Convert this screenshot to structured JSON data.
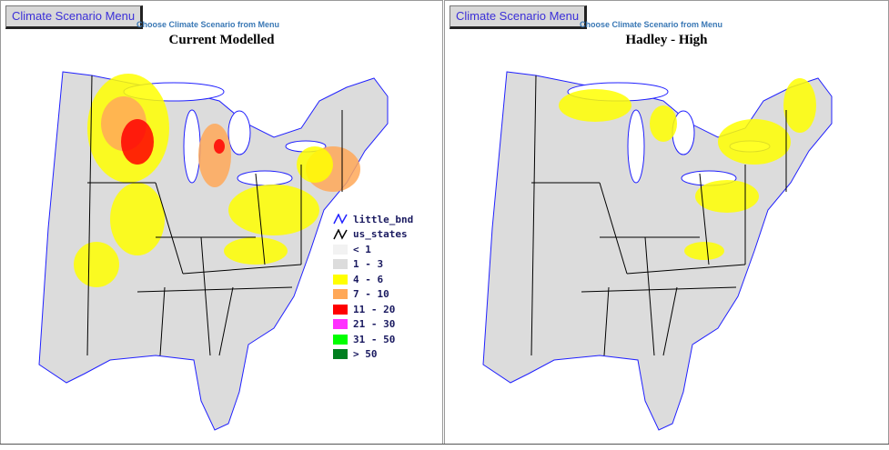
{
  "panels": [
    {
      "menu_label": "Climate Scenario Menu",
      "choose_text": "Choose Climate Scenario from Menu",
      "title": "Current Modelled"
    },
    {
      "menu_label": "Climate Scenario Menu",
      "choose_text": "Choose Climate Scenario from Menu",
      "title": "Hadley - High"
    }
  ],
  "legend": {
    "lines": [
      {
        "label": "little_bnd",
        "color": "#2020ff"
      },
      {
        "label": "us_states",
        "color": "#000000"
      }
    ],
    "classes": [
      {
        "label": "< 1",
        "color": "#f2f2f2"
      },
      {
        "label": "1 - 3",
        "color": "#dcdcdc"
      },
      {
        "label": "4 - 6",
        "color": "#ffff00"
      },
      {
        "label": "7 - 10",
        "color": "#ffa858"
      },
      {
        "label": "11 - 20",
        "color": "#ff0000"
      },
      {
        "label": "21 - 30",
        "color": "#ff30ff"
      },
      {
        "label": "31 - 50",
        "color": "#00ff00"
      },
      {
        "label": "> 50",
        "color": "#007f1f"
      }
    ]
  }
}
